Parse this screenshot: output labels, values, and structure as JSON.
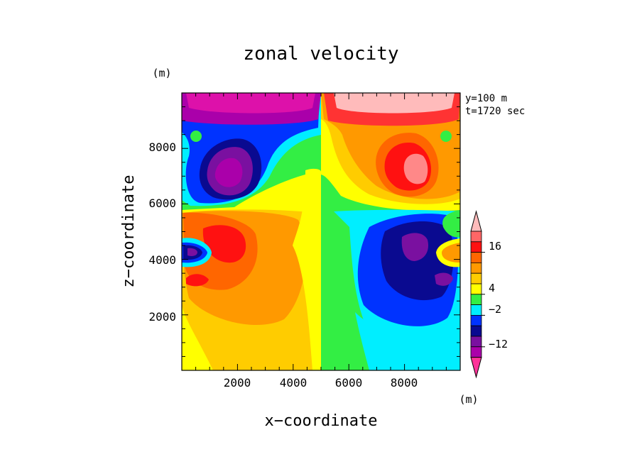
{
  "chart_data": {
    "type": "heatmap",
    "title": "zonal velocity",
    "xlabel": "x−coordinate",
    "ylabel": "z−coordinate",
    "x_unit": "(m)",
    "y_unit": "(m)",
    "xlim": [
      0,
      10000
    ],
    "ylim": [
      0,
      10000
    ],
    "x_ticks": [
      2000,
      4000,
      6000,
      8000
    ],
    "y_ticks": [
      2000,
      4000,
      6000,
      8000
    ],
    "x_tick_labels": [
      "2000",
      "4000",
      "6000",
      "8000"
    ],
    "y_tick_labels": [
      "2000",
      "4000",
      "6000",
      "8000"
    ],
    "annotations": [
      "y=100 m",
      "t=1720 sec"
    ],
    "colorbar": {
      "label": "(m)",
      "tick_labels": [
        "16",
        "4",
        "−2",
        "−12"
      ],
      "colors": [
        "#ff3399",
        "#aa00aa",
        "#7a10a0",
        "#0a0a90",
        "#0033ff",
        "#00eeff",
        "#33ee44",
        "#ffff00",
        "#ffcc00",
        "#ff9900",
        "#ff6600",
        "#ff1111",
        "#ff6666",
        "#ffbbbb"
      ]
    },
    "contour_levels": [
      {
        "name": "left-top",
        "value": -20,
        "color": "#dd11aa"
      },
      {
        "name": "left-blue",
        "value": -8,
        "color": "#0033ff"
      },
      {
        "name": "left-purple",
        "value": -16,
        "color": "#7a10a0"
      },
      {
        "name": "right-top",
        "value": 20,
        "color": "#ffbbbb"
      },
      {
        "name": "right-red",
        "value": 14,
        "color": "#ff1111"
      },
      {
        "name": "right-pink",
        "value": 18,
        "color": "#ff8888"
      },
      {
        "name": "lower-left-orange",
        "value": 8,
        "color": "#ff9900"
      },
      {
        "name": "lower-left-red",
        "value": 14,
        "color": "#ff1111"
      },
      {
        "name": "lower-right-blue",
        "value": -8,
        "color": "#0033ff"
      },
      {
        "name": "lower-right-navy",
        "value": -12,
        "color": "#0a0a90"
      },
      {
        "name": "lower-right-purple",
        "value": -16,
        "color": "#7a10a0"
      }
    ]
  }
}
